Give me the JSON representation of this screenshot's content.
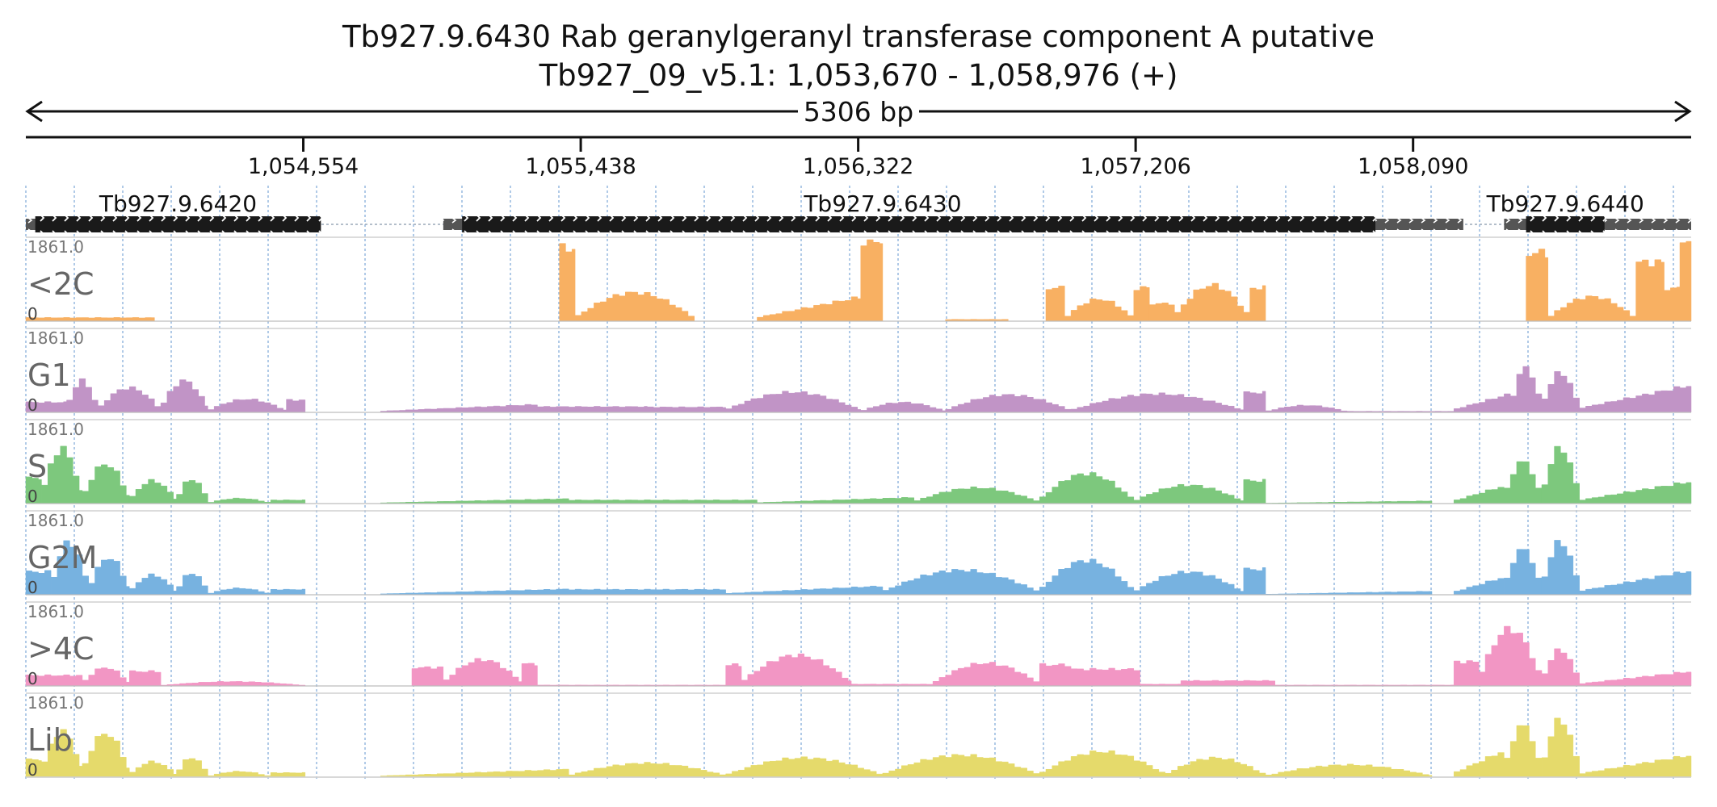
{
  "header": {
    "title": "Tb927.9.6430  Rab geranylgeranyl transferase component A  putative",
    "subtitle": "Tb927_09_v5.1: 1,053,670 - 1,058,976 (+)"
  },
  "chart_data": {
    "type": "area",
    "chromosome": "Tb927_09_v5.1",
    "region_start": 1053670,
    "region_end": 1058976,
    "strand": "+",
    "length_label": "5306 bp",
    "ticks": [
      {
        "pos": 1054554,
        "label": "1,054,554"
      },
      {
        "pos": 1055438,
        "label": "1,055,438"
      },
      {
        "pos": 1056322,
        "label": "1,056,322"
      },
      {
        "pos": 1057206,
        "label": "1,057,206"
      },
      {
        "pos": 1058090,
        "label": "1,058,090"
      }
    ],
    "genes": [
      {
        "name": "Tb927.9.6420",
        "utr_start": 1053670,
        "cds_start": 1053700,
        "cds_end": 1054610,
        "utr_end": 1054610
      },
      {
        "name": "Tb927.9.6430",
        "utr_start": 1055000,
        "cds_start": 1055060,
        "cds_end": 1057970,
        "utr_end": 1058250
      },
      {
        "name": "Tb927.9.6440",
        "utr_start": 1058380,
        "cds_start": 1058450,
        "cds_end": 1058700,
        "utr_end": 1058976
      }
    ],
    "ylim": [
      0,
      1861.0
    ],
    "ymax_label": "1861.0",
    "ymin_label": "0",
    "bin_size": 20,
    "tracks": [
      {
        "name": "<2C",
        "color": "#f8b062",
        "segments": [
          {
            "start": 1053670,
            "end": 1054080,
            "shape": "flat",
            "level": 80
          },
          {
            "start": 1055370,
            "end": 1055420,
            "shape": "flat",
            "level": 1660
          },
          {
            "start": 1055420,
            "end": 1055800,
            "shape": "hump",
            "level": 650
          },
          {
            "start": 1056000,
            "end": 1056330,
            "shape": "ramp",
            "level": 550
          },
          {
            "start": 1056330,
            "end": 1056400,
            "shape": "flat",
            "level": 1840
          },
          {
            "start": 1056600,
            "end": 1056800,
            "shape": "flat",
            "level": 40
          },
          {
            "start": 1056920,
            "end": 1056980,
            "shape": "flat",
            "level": 760
          },
          {
            "start": 1056980,
            "end": 1057200,
            "shape": "hump",
            "level": 500
          },
          {
            "start": 1057200,
            "end": 1057250,
            "shape": "flat",
            "level": 760
          },
          {
            "start": 1057250,
            "end": 1057330,
            "shape": "flat",
            "level": 400
          },
          {
            "start": 1057330,
            "end": 1057570,
            "shape": "hump",
            "level": 820
          },
          {
            "start": 1057570,
            "end": 1057620,
            "shape": "flat",
            "level": 760
          },
          {
            "start": 1058450,
            "end": 1058520,
            "shape": "flat",
            "level": 1560
          },
          {
            "start": 1058520,
            "end": 1058800,
            "shape": "hump",
            "level": 560
          },
          {
            "start": 1058800,
            "end": 1058890,
            "shape": "flat",
            "level": 1340
          },
          {
            "start": 1058890,
            "end": 1058940,
            "shape": "flat",
            "level": 750
          },
          {
            "start": 1058940,
            "end": 1058976,
            "shape": "flat",
            "level": 1861
          }
        ]
      },
      {
        "name": "G1",
        "color": "#c194c6",
        "segments": [
          {
            "start": 1053670,
            "end": 1053800,
            "shape": "flat",
            "level": 230
          },
          {
            "start": 1053800,
            "end": 1053900,
            "shape": "hump",
            "level": 720
          },
          {
            "start": 1053900,
            "end": 1054100,
            "shape": "hump",
            "level": 560
          },
          {
            "start": 1054100,
            "end": 1054250,
            "shape": "hump",
            "level": 720
          },
          {
            "start": 1054250,
            "end": 1054500,
            "shape": "hump",
            "level": 300
          },
          {
            "start": 1054500,
            "end": 1054560,
            "shape": "flat",
            "level": 280
          },
          {
            "start": 1054800,
            "end": 1055300,
            "shape": "ramp",
            "level": 180
          },
          {
            "start": 1055300,
            "end": 1055650,
            "shape": "flat",
            "level": 130
          },
          {
            "start": 1055650,
            "end": 1055900,
            "shape": "flat",
            "level": 120
          },
          {
            "start": 1055900,
            "end": 1056330,
            "shape": "hump",
            "level": 460
          },
          {
            "start": 1056330,
            "end": 1056600,
            "shape": "hump",
            "level": 230
          },
          {
            "start": 1056600,
            "end": 1057000,
            "shape": "hump",
            "level": 400
          },
          {
            "start": 1057000,
            "end": 1057550,
            "shape": "hump",
            "level": 420
          },
          {
            "start": 1057550,
            "end": 1057620,
            "shape": "flat",
            "level": 450
          },
          {
            "start": 1057620,
            "end": 1057880,
            "shape": "hump",
            "level": 160
          },
          {
            "start": 1057880,
            "end": 1058220,
            "shape": "flat",
            "level": 25
          },
          {
            "start": 1058220,
            "end": 1058400,
            "shape": "ramp",
            "level": 420
          },
          {
            "start": 1058400,
            "end": 1058500,
            "shape": "hump",
            "level": 1020
          },
          {
            "start": 1058500,
            "end": 1058620,
            "shape": "hump",
            "level": 900
          },
          {
            "start": 1058620,
            "end": 1058976,
            "shape": "ramp",
            "level": 620
          }
        ]
      },
      {
        "name": "S",
        "color": "#7dc87d",
        "segments": [
          {
            "start": 1053670,
            "end": 1053720,
            "shape": "flat",
            "level": 580
          },
          {
            "start": 1053720,
            "end": 1053850,
            "shape": "hump",
            "level": 1250
          },
          {
            "start": 1053850,
            "end": 1054000,
            "shape": "hump",
            "level": 900
          },
          {
            "start": 1054000,
            "end": 1054150,
            "shape": "hump",
            "level": 520
          },
          {
            "start": 1054150,
            "end": 1054250,
            "shape": "hump",
            "level": 560
          },
          {
            "start": 1054250,
            "end": 1054450,
            "shape": "hump",
            "level": 120
          },
          {
            "start": 1054450,
            "end": 1054560,
            "shape": "flat",
            "level": 80
          },
          {
            "start": 1054800,
            "end": 1055400,
            "shape": "ramp",
            "level": 110
          },
          {
            "start": 1055400,
            "end": 1056000,
            "shape": "flat",
            "level": 80
          },
          {
            "start": 1056000,
            "end": 1056500,
            "shape": "ramp",
            "level": 140
          },
          {
            "start": 1056500,
            "end": 1056900,
            "shape": "hump",
            "level": 360
          },
          {
            "start": 1056900,
            "end": 1057200,
            "shape": "hump",
            "level": 680
          },
          {
            "start": 1057200,
            "end": 1057550,
            "shape": "hump",
            "level": 420
          },
          {
            "start": 1057550,
            "end": 1057620,
            "shape": "flat",
            "level": 520
          },
          {
            "start": 1057620,
            "end": 1058150,
            "shape": "ramp",
            "level": 60
          },
          {
            "start": 1058220,
            "end": 1058380,
            "shape": "ramp",
            "level": 400
          },
          {
            "start": 1058380,
            "end": 1058500,
            "shape": "hump",
            "level": 960
          },
          {
            "start": 1058500,
            "end": 1058620,
            "shape": "hump",
            "level": 1260
          },
          {
            "start": 1058620,
            "end": 1058976,
            "shape": "ramp",
            "level": 500
          }
        ]
      },
      {
        "name": "G2M",
        "color": "#77b2e0",
        "segments": [
          {
            "start": 1053670,
            "end": 1053750,
            "shape": "flat",
            "level": 520
          },
          {
            "start": 1053750,
            "end": 1053870,
            "shape": "hump",
            "level": 1200
          },
          {
            "start": 1053870,
            "end": 1054000,
            "shape": "hump",
            "level": 850
          },
          {
            "start": 1054000,
            "end": 1054150,
            "shape": "hump",
            "level": 450
          },
          {
            "start": 1054150,
            "end": 1054250,
            "shape": "hump",
            "level": 500
          },
          {
            "start": 1054250,
            "end": 1054450,
            "shape": "hump",
            "level": 150
          },
          {
            "start": 1054450,
            "end": 1054560,
            "shape": "flat",
            "level": 120
          },
          {
            "start": 1054800,
            "end": 1055400,
            "shape": "ramp",
            "level": 130
          },
          {
            "start": 1055400,
            "end": 1055900,
            "shape": "flat",
            "level": 120
          },
          {
            "start": 1055900,
            "end": 1056400,
            "shape": "ramp",
            "level": 200
          },
          {
            "start": 1056400,
            "end": 1056900,
            "shape": "hump",
            "level": 560
          },
          {
            "start": 1056900,
            "end": 1057200,
            "shape": "hump",
            "level": 780
          },
          {
            "start": 1057200,
            "end": 1057550,
            "shape": "hump",
            "level": 520
          },
          {
            "start": 1057550,
            "end": 1057620,
            "shape": "flat",
            "level": 580
          },
          {
            "start": 1057620,
            "end": 1058150,
            "shape": "ramp",
            "level": 80
          },
          {
            "start": 1058220,
            "end": 1058380,
            "shape": "ramp",
            "level": 400
          },
          {
            "start": 1058380,
            "end": 1058500,
            "shape": "hump",
            "level": 1040
          },
          {
            "start": 1058500,
            "end": 1058620,
            "shape": "hump",
            "level": 1200
          },
          {
            "start": 1058620,
            "end": 1058976,
            "shape": "ramp",
            "level": 550
          }
        ]
      },
      {
        "name": ">4C",
        "color": "#f296c4",
        "segments": [
          {
            "start": 1053670,
            "end": 1053850,
            "shape": "flat",
            "level": 240
          },
          {
            "start": 1053850,
            "end": 1054000,
            "shape": "hump",
            "level": 420
          },
          {
            "start": 1054000,
            "end": 1054100,
            "shape": "flat",
            "level": 330
          },
          {
            "start": 1054100,
            "end": 1054560,
            "shape": "hump",
            "level": 100
          },
          {
            "start": 1054900,
            "end": 1055000,
            "shape": "flat",
            "level": 420
          },
          {
            "start": 1055000,
            "end": 1055250,
            "shape": "hump",
            "level": 600
          },
          {
            "start": 1055250,
            "end": 1055300,
            "shape": "flat",
            "level": 500
          },
          {
            "start": 1055300,
            "end": 1055900,
            "shape": "flat",
            "level": 20
          },
          {
            "start": 1055900,
            "end": 1055950,
            "shape": "flat",
            "level": 480
          },
          {
            "start": 1055950,
            "end": 1056300,
            "shape": "hump",
            "level": 700
          },
          {
            "start": 1056300,
            "end": 1056560,
            "shape": "flat",
            "level": 40
          },
          {
            "start": 1056560,
            "end": 1056900,
            "shape": "hump",
            "level": 520
          },
          {
            "start": 1056900,
            "end": 1057000,
            "shape": "flat",
            "level": 480
          },
          {
            "start": 1057000,
            "end": 1057220,
            "shape": "flat",
            "level": 380
          },
          {
            "start": 1057220,
            "end": 1057350,
            "shape": "flat",
            "level": 40
          },
          {
            "start": 1057350,
            "end": 1057650,
            "shape": "flat",
            "level": 120
          },
          {
            "start": 1057650,
            "end": 1058220,
            "shape": "flat",
            "level": 20
          },
          {
            "start": 1058220,
            "end": 1058300,
            "shape": "flat",
            "level": 550
          },
          {
            "start": 1058300,
            "end": 1058500,
            "shape": "hump",
            "level": 1300
          },
          {
            "start": 1058500,
            "end": 1058620,
            "shape": "hump",
            "level": 820
          },
          {
            "start": 1058620,
            "end": 1058976,
            "shape": "ramp",
            "level": 330
          }
        ]
      },
      {
        "name": "Lib",
        "color": "#e5da6b",
        "segments": [
          {
            "start": 1053670,
            "end": 1053720,
            "shape": "flat",
            "level": 400
          },
          {
            "start": 1053720,
            "end": 1053850,
            "shape": "hump",
            "level": 1040
          },
          {
            "start": 1053850,
            "end": 1054000,
            "shape": "hump",
            "level": 1000
          },
          {
            "start": 1054000,
            "end": 1054150,
            "shape": "hump",
            "level": 350
          },
          {
            "start": 1054150,
            "end": 1054250,
            "shape": "hump",
            "level": 450
          },
          {
            "start": 1054250,
            "end": 1054450,
            "shape": "hump",
            "level": 130
          },
          {
            "start": 1054450,
            "end": 1054560,
            "shape": "flat",
            "level": 100
          },
          {
            "start": 1054800,
            "end": 1055400,
            "shape": "ramp",
            "level": 180
          },
          {
            "start": 1055400,
            "end": 1055900,
            "shape": "hump",
            "level": 320
          },
          {
            "start": 1055900,
            "end": 1056400,
            "shape": "hump",
            "level": 440
          },
          {
            "start": 1056400,
            "end": 1056900,
            "shape": "hump",
            "level": 500
          },
          {
            "start": 1056900,
            "end": 1057300,
            "shape": "hump",
            "level": 580
          },
          {
            "start": 1057300,
            "end": 1057620,
            "shape": "hump",
            "level": 440
          },
          {
            "start": 1057620,
            "end": 1058150,
            "shape": "hump",
            "level": 280
          },
          {
            "start": 1058220,
            "end": 1058380,
            "shape": "ramp",
            "level": 600
          },
          {
            "start": 1058380,
            "end": 1058500,
            "shape": "hump",
            "level": 1180
          },
          {
            "start": 1058500,
            "end": 1058620,
            "shape": "hump",
            "level": 1300
          },
          {
            "start": 1058620,
            "end": 1058976,
            "shape": "ramp",
            "level": 500
          }
        ]
      }
    ]
  }
}
